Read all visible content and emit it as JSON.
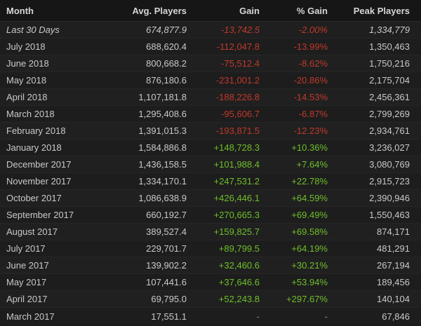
{
  "colors": {
    "background": "#1b1b1b",
    "text": "#c9c9c9",
    "negative": "#c0392b",
    "positive": "#6fbf2a"
  },
  "header": {
    "month": "Month",
    "avg_players": "Avg. Players",
    "gain": "Gain",
    "pct_gain": "% Gain",
    "peak_players": "Peak Players"
  },
  "rows": [
    {
      "month": "Last 30 Days",
      "avg": "674,877.9",
      "gain": "-13,742.5",
      "pct": "-2.00%",
      "peak": "1,334,779",
      "trend": "neg"
    },
    {
      "month": "July 2018",
      "avg": "688,620.4",
      "gain": "-112,047.8",
      "pct": "-13.99%",
      "peak": "1,350,463",
      "trend": "neg"
    },
    {
      "month": "June 2018",
      "avg": "800,668.2",
      "gain": "-75,512.4",
      "pct": "-8.62%",
      "peak": "1,750,216",
      "trend": "neg"
    },
    {
      "month": "May 2018",
      "avg": "876,180.6",
      "gain": "-231,001.2",
      "pct": "-20.86%",
      "peak": "2,175,704",
      "trend": "neg"
    },
    {
      "month": "April 2018",
      "avg": "1,107,181.8",
      "gain": "-188,226.8",
      "pct": "-14.53%",
      "peak": "2,456,361",
      "trend": "neg"
    },
    {
      "month": "March 2018",
      "avg": "1,295,408.6",
      "gain": "-95,606.7",
      "pct": "-6.87%",
      "peak": "2,799,269",
      "trend": "neg"
    },
    {
      "month": "February 2018",
      "avg": "1,391,015.3",
      "gain": "-193,871.5",
      "pct": "-12.23%",
      "peak": "2,934,761",
      "trend": "neg"
    },
    {
      "month": "January 2018",
      "avg": "1,584,886.8",
      "gain": "+148,728.3",
      "pct": "+10.36%",
      "peak": "3,236,027",
      "trend": "pos"
    },
    {
      "month": "December 2017",
      "avg": "1,436,158.5",
      "gain": "+101,988.4",
      "pct": "+7.64%",
      "peak": "3,080,769",
      "trend": "pos"
    },
    {
      "month": "November 2017",
      "avg": "1,334,170.1",
      "gain": "+247,531.2",
      "pct": "+22.78%",
      "peak": "2,915,723",
      "trend": "pos"
    },
    {
      "month": "October 2017",
      "avg": "1,086,638.9",
      "gain": "+426,446.1",
      "pct": "+64.59%",
      "peak": "2,390,946",
      "trend": "pos"
    },
    {
      "month": "September 2017",
      "avg": "660,192.7",
      "gain": "+270,665.3",
      "pct": "+69.49%",
      "peak": "1,550,463",
      "trend": "pos"
    },
    {
      "month": "August 2017",
      "avg": "389,527.4",
      "gain": "+159,825.7",
      "pct": "+69.58%",
      "peak": "874,171",
      "trend": "pos"
    },
    {
      "month": "July 2017",
      "avg": "229,701.7",
      "gain": "+89,799.5",
      "pct": "+64.19%",
      "peak": "481,291",
      "trend": "pos"
    },
    {
      "month": "June 2017",
      "avg": "139,902.2",
      "gain": "+32,460.6",
      "pct": "+30.21%",
      "peak": "267,194",
      "trend": "pos"
    },
    {
      "month": "May 2017",
      "avg": "107,441.6",
      "gain": "+37,646.6",
      "pct": "+53.94%",
      "peak": "189,456",
      "trend": "pos"
    },
    {
      "month": "April 2017",
      "avg": "69,795.0",
      "gain": "+52,243.8",
      "pct": "+297.67%",
      "peak": "140,104",
      "trend": "pos"
    },
    {
      "month": "March 2017",
      "avg": "17,551.1",
      "gain": "-",
      "pct": "-",
      "peak": "67,846",
      "trend": "na"
    }
  ]
}
